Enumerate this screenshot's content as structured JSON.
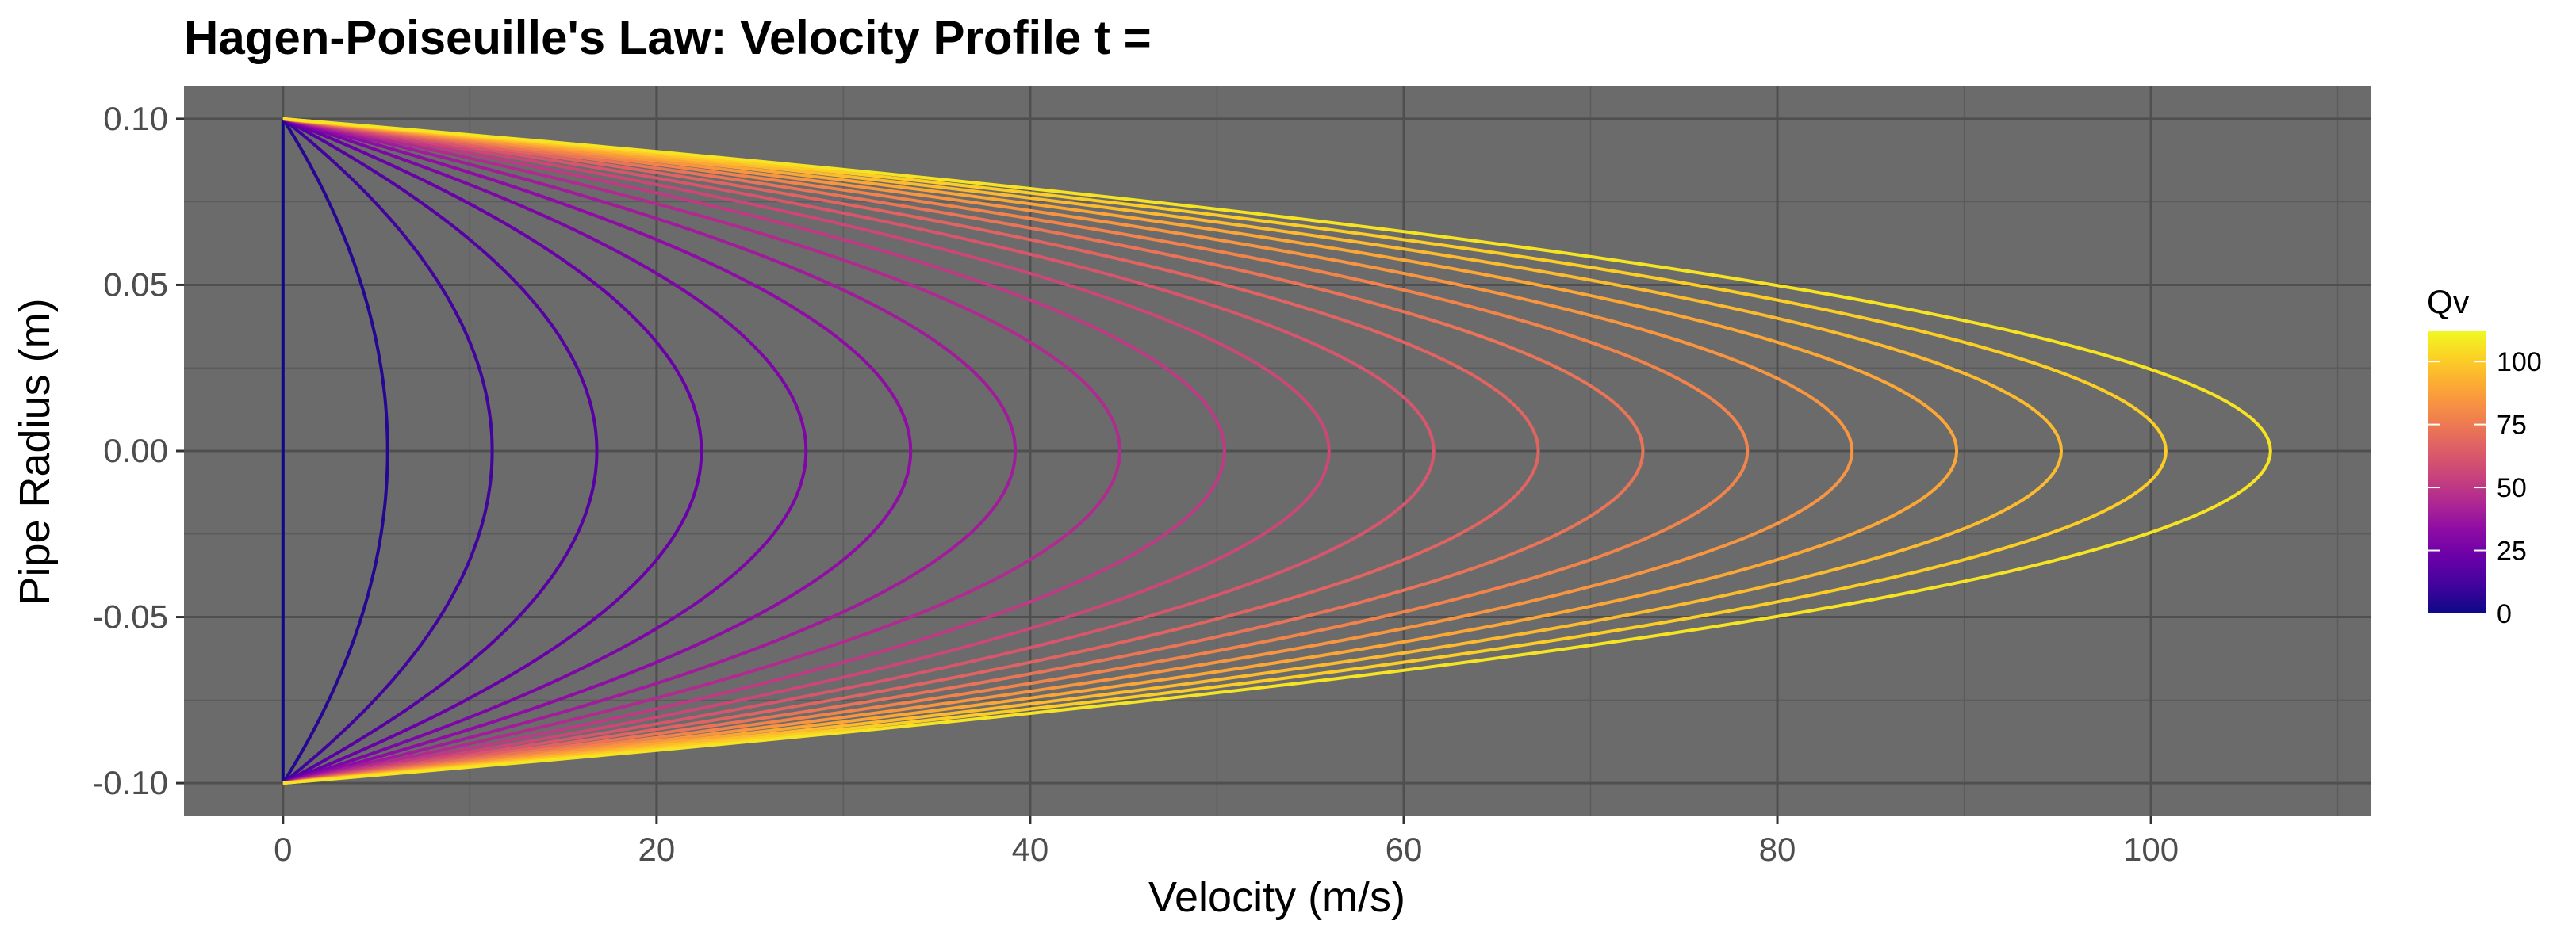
{
  "chart_data": {
    "type": "line",
    "title": "Hagen-Poiseuille's Law: Velocity Profile t =",
    "xlabel": "Velocity (m/s)",
    "ylabel": "Pipe Radius (m)",
    "xlim": [
      -5.3,
      111.8
    ],
    "ylim": [
      -0.11,
      0.11
    ],
    "x_ticks": [
      0,
      20,
      40,
      60,
      80,
      100
    ],
    "x_tick_labels": [
      "0",
      "20",
      "40",
      "60",
      "80",
      "100"
    ],
    "y_ticks": [
      -0.1,
      -0.05,
      0,
      0.05,
      0.1
    ],
    "y_tick_labels": [
      "-0.10",
      "-0.05",
      "0.00",
      "0.05",
      "0.10"
    ],
    "grid": true,
    "panel_background": "#6b6b6b",
    "profile_shape": "parabolic: velocity = vmax * (1 - (r / 0.1)^2)",
    "series": [
      {
        "vmax": 0.0
      },
      {
        "vmax": 5.6
      },
      {
        "vmax": 11.2
      },
      {
        "vmax": 16.8
      },
      {
        "vmax": 22.4
      },
      {
        "vmax": 28.0
      },
      {
        "vmax": 33.6
      },
      {
        "vmax": 39.2
      },
      {
        "vmax": 44.8
      },
      {
        "vmax": 50.4
      },
      {
        "vmax": 56.0
      },
      {
        "vmax": 61.6
      },
      {
        "vmax": 67.2
      },
      {
        "vmax": 72.8
      },
      {
        "vmax": 78.4
      },
      {
        "vmax": 84.0
      },
      {
        "vmax": 89.6
      },
      {
        "vmax": 95.2
      },
      {
        "vmax": 100.8
      },
      {
        "vmax": 106.4
      }
    ],
    "legend": {
      "title": "Qv",
      "position": "right",
      "range": [
        0,
        112
      ],
      "breaks": [
        0,
        25,
        50,
        75,
        100
      ],
      "break_labels": [
        "0",
        "25",
        "50",
        "75",
        "100"
      ],
      "colormap": "plasma",
      "colors": [
        "#0d0887",
        "#41049d",
        "#6a00a8",
        "#8f0da4",
        "#b12a90",
        "#cc4778",
        "#e16462",
        "#f2844b",
        "#fca636",
        "#fcce25",
        "#f0f921"
      ]
    }
  }
}
